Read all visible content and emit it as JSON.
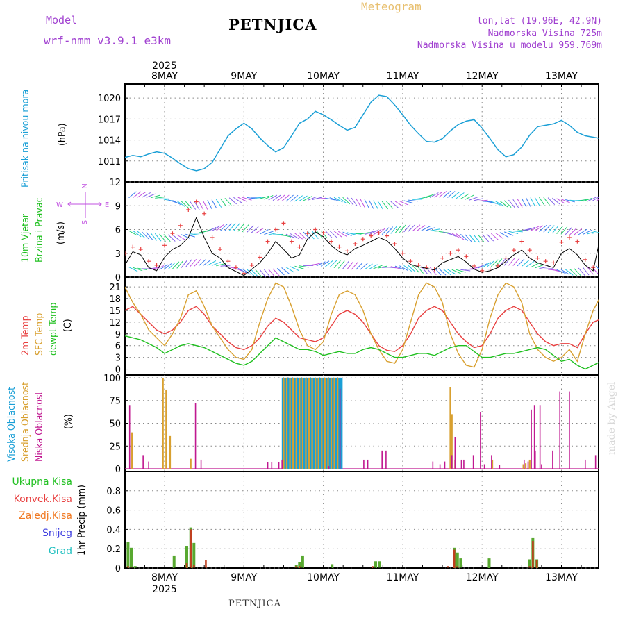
{
  "header": {
    "model_label": "Model",
    "model_name": "wrf-nmm_v3.9.1 e3km",
    "title": "PETNJICA",
    "meteogram": "Meteogram",
    "lonlat": "lon,lat (19.96E, 42.9N)",
    "altitude": "Nadmorska Visina 725m",
    "model_altitude": "Nadmorska Visina u modelu 959.769m",
    "footer_station": "PETNJICA",
    "watermark": "made by Angel"
  },
  "colors": {
    "pressure": "#1a9fd6",
    "wind_label": "#20c020",
    "temp": "#e84040",
    "sfc": "#d8a030",
    "dew": "#20c020",
    "high": "#1a9fd6",
    "mid": "#d8a030",
    "low": "#c01890",
    "total": "#20c020",
    "conv": "#e84040",
    "frz": "#f07820",
    "snow": "#4040e0",
    "hail": "#20c0c0",
    "compass": "#c050e0",
    "header_purple": "#a040d0",
    "meteo_orange": "#e8c070"
  },
  "chart_data": [
    {
      "type": "line",
      "id": "pressure",
      "title": "Pritisak na nivou mora",
      "ylabel": "(hPa)",
      "ylim": [
        1008,
        1022
      ],
      "yticks": [
        1011,
        1014,
        1017,
        1020
      ],
      "x_days": [
        "8MAY",
        "9MAY",
        "10MAY",
        "11MAY",
        "12MAY",
        "13MAY"
      ],
      "year": "2025",
      "x": [
        -0.5,
        -0.4,
        -0.3,
        -0.2,
        -0.1,
        0,
        0.1,
        0.2,
        0.3,
        0.4,
        0.5,
        0.6,
        0.7,
        0.8,
        0.9,
        1.0,
        1.1,
        1.2,
        1.3,
        1.4,
        1.5,
        1.6,
        1.7,
        1.8,
        1.9,
        2.0,
        2.1,
        2.2,
        2.3,
        2.4,
        2.5,
        2.6,
        2.7,
        2.8,
        2.9,
        3.0,
        3.1,
        3.2,
        3.3,
        3.4,
        3.5,
        3.6,
        3.7,
        3.8,
        3.9,
        4.0,
        4.1,
        4.2,
        4.3,
        4.4,
        4.5,
        4.6,
        4.7,
        4.8,
        4.9,
        5.0,
        5.1,
        5.2,
        5.3,
        5.4,
        5.5
      ],
      "values": [
        1011.5,
        1011.8,
        1011.6,
        1012.0,
        1012.3,
        1012.1,
        1011.4,
        1010.6,
        1009.9,
        1009.6,
        1009.9,
        1010.8,
        1012.7,
        1014.6,
        1015.6,
        1016.4,
        1015.6,
        1014.3,
        1013.2,
        1012.3,
        1012.9,
        1014.6,
        1016.4,
        1017.0,
        1018.1,
        1017.6,
        1016.9,
        1016.1,
        1015.4,
        1015.8,
        1017.6,
        1019.4,
        1020.4,
        1020.2,
        1019.0,
        1017.6,
        1016.1,
        1014.9,
        1013.8,
        1013.7,
        1014.2,
        1015.3,
        1016.2,
        1016.7,
        1016.9,
        1015.7,
        1014.2,
        1012.6,
        1011.6,
        1011.9,
        1013.0,
        1014.7,
        1015.9,
        1016.1,
        1016.3,
        1016.8,
        1016.1,
        1015.1,
        1014.6,
        1014.4,
        1014.2
      ]
    },
    {
      "type": "line",
      "id": "wind",
      "title": "10m Vjetar Brzina i Pravac",
      "label_line1": "10m Vjetar",
      "label_line2": "Brzina i Pravac",
      "ylabel": "(m/s)",
      "ylim": [
        0,
        12
      ],
      "yticks": [
        0,
        3,
        6,
        9,
        12
      ],
      "compass": {
        "n": "N",
        "s": "S",
        "e": "E",
        "w": "W"
      },
      "x": [
        -0.5,
        -0.4,
        -0.3,
        -0.2,
        -0.1,
        0,
        0.1,
        0.2,
        0.3,
        0.4,
        0.5,
        0.6,
        0.7,
        0.8,
        0.9,
        1.0,
        1.1,
        1.2,
        1.3,
        1.4,
        1.5,
        1.6,
        1.7,
        1.8,
        1.9,
        2.0,
        2.1,
        2.2,
        2.3,
        2.4,
        2.5,
        2.6,
        2.7,
        2.8,
        2.9,
        3.0,
        3.1,
        3.2,
        3.3,
        3.4,
        3.5,
        3.6,
        3.7,
        3.8,
        3.9,
        4.0,
        4.1,
        4.2,
        4.3,
        4.4,
        4.5,
        4.6,
        4.7,
        4.8,
        4.9,
        5.0,
        5.1,
        5.2,
        5.3,
        5.4,
        5.5
      ],
      "speed": [
        1.5,
        3.2,
        2.8,
        1.2,
        0.8,
        2.5,
        3.5,
        4.0,
        5.0,
        7.5,
        5.0,
        3.0,
        2.4,
        1.2,
        0.7,
        0.2,
        1.0,
        1.8,
        3.0,
        4.5,
        3.5,
        2.4,
        2.8,
        4.8,
        5.7,
        5.1,
        4.0,
        3.2,
        2.8,
        3.6,
        4.0,
        4.5,
        5.0,
        4.6,
        3.6,
        2.4,
        1.6,
        1.3,
        1.1,
        0.9,
        1.8,
        2.2,
        2.6,
        1.9,
        1.0,
        0.6,
        0.8,
        1.2,
        2.0,
        2.8,
        3.4,
        2.4,
        1.8,
        1.5,
        1.2,
        3.0,
        3.6,
        2.8,
        1.5,
        0.8,
        5.5
      ],
      "gust": [
        3.0,
        3.8,
        3.5,
        2.0,
        1.5,
        4.0,
        5.5,
        6.5,
        8.5,
        9.5,
        8.0,
        5.0,
        3.5,
        2.0,
        1.2,
        0.5,
        1.5,
        2.5,
        4.5,
        6.0,
        6.8,
        4.5,
        3.8,
        5.5,
        6.0,
        5.6,
        4.5,
        3.8,
        3.3,
        4.2,
        4.8,
        5.2,
        5.6,
        5.2,
        4.2,
        3.0,
        2.0,
        1.5,
        1.2,
        1.0,
        2.4,
        3.0,
        3.4,
        2.6,
        1.4,
        0.8,
        1.0,
        1.4,
        2.4,
        3.4,
        4.5,
        3.4,
        2.4,
        2.0,
        1.8,
        4.4,
        5.0,
        4.5,
        2.2,
        1.2,
        5.6
      ]
    },
    {
      "type": "line",
      "id": "temperature",
      "labels": [
        "2m Temp",
        "SFC Temp",
        "dewpt Temp"
      ],
      "ylabel": "(C)",
      "ylim": [
        -1.5,
        23.5
      ],
      "yticks": [
        0,
        3,
        6,
        9,
        12,
        15,
        18,
        21
      ],
      "x": [
        -0.5,
        -0.4,
        -0.3,
        -0.2,
        -0.1,
        0,
        0.1,
        0.2,
        0.3,
        0.4,
        0.5,
        0.6,
        0.7,
        0.8,
        0.9,
        1.0,
        1.1,
        1.2,
        1.3,
        1.4,
        1.5,
        1.6,
        1.7,
        1.8,
        1.9,
        2.0,
        2.1,
        2.2,
        2.3,
        2.4,
        2.5,
        2.6,
        2.7,
        2.8,
        2.9,
        3.0,
        3.1,
        3.2,
        3.3,
        3.4,
        3.5,
        3.6,
        3.7,
        3.8,
        3.9,
        4.0,
        4.1,
        4.2,
        4.3,
        4.4,
        4.5,
        4.6,
        4.7,
        4.8,
        4.9,
        5.0,
        5.1,
        5.2,
        5.3,
        5.4,
        5.5
      ],
      "series": [
        {
          "name": "2m Temp",
          "values": [
            15,
            16,
            14,
            12,
            10,
            9,
            10,
            12,
            15,
            16,
            14,
            11,
            9,
            7,
            5.5,
            5,
            6,
            8,
            11,
            13,
            12,
            10,
            8,
            7.5,
            7,
            8,
            11,
            14,
            15,
            14,
            12,
            9,
            6,
            4.8,
            4.5,
            6,
            9,
            13,
            15,
            16,
            15,
            12,
            9,
            7,
            5.5,
            6,
            9,
            13,
            15,
            16,
            15,
            12,
            9,
            7,
            6,
            6.5,
            6.5,
            5.5,
            9,
            12,
            12.8
          ]
        },
        {
          "name": "SFC Temp",
          "values": [
            21,
            17,
            14,
            10,
            8,
            6,
            9,
            13,
            19,
            20,
            16,
            11,
            8,
            5,
            3,
            2.5,
            5,
            12,
            18,
            22,
            21,
            16,
            10,
            6,
            5,
            7,
            14,
            19,
            20,
            19,
            15,
            9,
            5,
            2,
            1.5,
            5,
            12,
            19,
            22,
            21,
            17,
            9,
            4,
            1,
            0.5,
            5,
            13,
            19,
            22,
            21,
            17,
            9,
            5,
            3,
            2,
            3,
            5,
            2,
            9,
            15,
            18.8
          ]
        },
        {
          "name": "dewpt Temp",
          "values": [
            8.5,
            8,
            7.5,
            6.5,
            5.5,
            4,
            5,
            6,
            6.5,
            6,
            5.5,
            4.5,
            3.5,
            2.5,
            1.5,
            1,
            2,
            4,
            6,
            8,
            7,
            6,
            5,
            5,
            4.5,
            3.5,
            4,
            4.5,
            4,
            4,
            5,
            5.5,
            5,
            4,
            3,
            3,
            3.5,
            4,
            4,
            3.5,
            4.5,
            5.5,
            6,
            6,
            4.5,
            3,
            3,
            3.5,
            4,
            4,
            4.5,
            5,
            5.5,
            5,
            3.5,
            2,
            2.5,
            1,
            0,
            1,
            2
          ]
        }
      ]
    },
    {
      "type": "bar",
      "id": "clouds",
      "labels": [
        "Visoka Oblacnost",
        "Srednja Oblacnost",
        "Niska Oblacnost"
      ],
      "ylabel": "(%)",
      "ylim": [
        -3,
        103
      ],
      "yticks": [
        0,
        25,
        50,
        75,
        100
      ],
      "series": [
        {
          "name": "Visoka",
          "x": [
            1.49,
            1.51,
            1.53,
            1.55,
            1.57,
            1.59,
            1.61,
            1.63,
            1.65,
            1.67,
            1.69,
            1.71,
            1.73,
            1.75,
            1.77,
            1.79,
            1.81,
            1.83,
            1.85,
            1.87,
            1.89,
            1.91,
            1.93,
            1.95,
            1.97,
            1.99,
            2.01,
            2.03,
            2.05,
            2.07,
            2.09,
            2.11,
            2.13,
            2.15,
            2.17,
            2.19,
            2.21,
            2.23
          ],
          "values": [
            100,
            100,
            100,
            100,
            100,
            100,
            100,
            100,
            100,
            100,
            100,
            100,
            100,
            100,
            100,
            100,
            100,
            100,
            100,
            100,
            100,
            100,
            100,
            100,
            100,
            100,
            100,
            100,
            100,
            100,
            100,
            100,
            100,
            100,
            100,
            100,
            100,
            100
          ]
        },
        {
          "name": "Srednja",
          "x": [
            -0.41,
            -0.02,
            0.02,
            0.07,
            0.33,
            1.5,
            1.54,
            1.58,
            1.62,
            1.66,
            1.7,
            1.74,
            1.78,
            1.82,
            1.86,
            1.9,
            1.94,
            1.98,
            2.02,
            2.06,
            2.1,
            2.14,
            2.18,
            3.6,
            3.62,
            3.66,
            4.13,
            4.52,
            4.55,
            4.6
          ],
          "values": [
            40,
            100,
            87,
            36,
            11,
            100,
            100,
            100,
            100,
            100,
            100,
            100,
            100,
            100,
            100,
            100,
            100,
            100,
            100,
            100,
            100,
            100,
            100,
            90,
            60,
            10,
            10,
            5,
            6,
            10
          ]
        },
        {
          "name": "Niska",
          "x": [
            -0.44,
            -0.27,
            -0.2,
            0.39,
            0.46,
            1.3,
            1.35,
            1.44,
            1.48,
            2.07,
            2.21,
            2.51,
            2.56,
            2.74,
            2.79,
            3.38,
            3.47,
            3.53,
            3.62,
            3.66,
            3.74,
            3.77,
            3.89,
            3.98,
            4.03,
            4.12,
            4.22,
            4.53,
            4.58,
            4.62,
            4.66,
            4.67,
            4.73,
            4.75,
            4.89,
            4.98,
            5.1,
            5.3,
            5.43
          ],
          "values": [
            70,
            15,
            8,
            72,
            10,
            7,
            7,
            7,
            10,
            3,
            88,
            10,
            10,
            20,
            20,
            8,
            5,
            8,
            15,
            35,
            10,
            10,
            15,
            62,
            5,
            15,
            4,
            10,
            8,
            65,
            70,
            20,
            70,
            5,
            20,
            85,
            85,
            10,
            15
          ]
        }
      ]
    },
    {
      "type": "bar",
      "id": "precip",
      "labels": [
        "Ukupna Kisa",
        "Konvek.Kisa",
        "Zaledj.Kisa",
        "Snijeg",
        "Grad"
      ],
      "ylabel": "1hr Precip (mm)",
      "ylim": [
        0,
        1.0
      ],
      "yticks": [
        0,
        0.2,
        0.4,
        0.6,
        0.8
      ],
      "x_days": [
        "8MAY",
        "9MAY",
        "10MAY",
        "11MAY",
        "12MAY",
        "13MAY"
      ],
      "year": "2025",
      "series": [
        {
          "name": "Ukupna Kisa",
          "x": [
            -0.46,
            -0.42,
            -0.37,
            0.12,
            0.28,
            0.33,
            0.37,
            1.66,
            1.7,
            1.74,
            2.11,
            2.66,
            2.71,
            3.65,
            3.69,
            3.73,
            4.09,
            4.6,
            4.64,
            4.69
          ],
          "values": [
            0.27,
            0.21,
            0.02,
            0.13,
            0.23,
            0.42,
            0.26,
            0.03,
            0.06,
            0.13,
            0.04,
            0.07,
            0.07,
            0.21,
            0.16,
            0.1,
            0.1,
            0.09,
            0.31,
            0.09
          ]
        },
        {
          "name": "Konvek.Kisa",
          "x": [
            -0.46,
            -0.42,
            0.28,
            0.33,
            0.37,
            0.52,
            1.66,
            1.7,
            2.62,
            3.57,
            3.65,
            3.69,
            4.6,
            4.64,
            4.69
          ],
          "values": [
            0.02,
            0.01,
            0.05,
            0.4,
            0.03,
            0.08,
            0.02,
            0.02,
            0.02,
            0.02,
            0.19,
            0.02,
            0.02,
            0.28,
            0.08
          ]
        }
      ]
    }
  ]
}
